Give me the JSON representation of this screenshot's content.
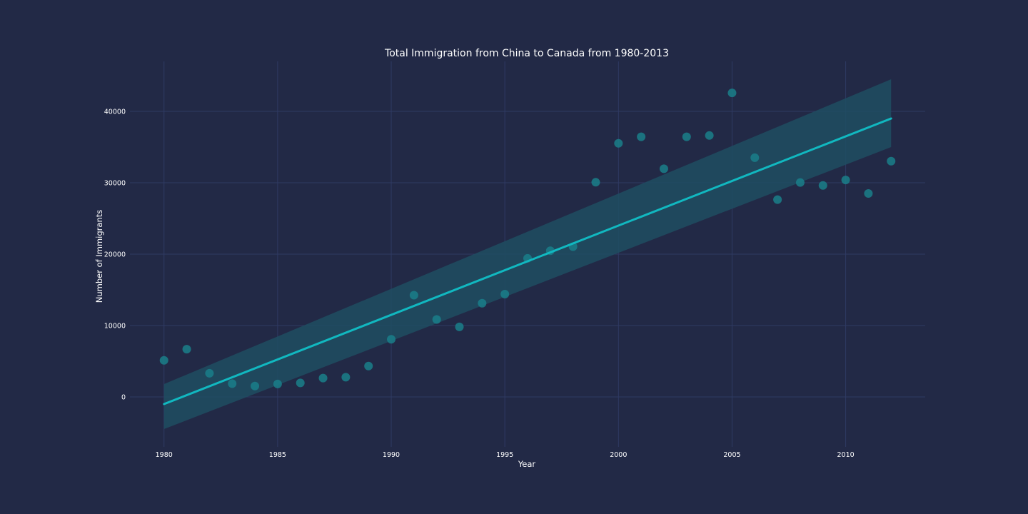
{
  "chart_data": {
    "type": "scatter",
    "title": "Total Immigration from China to Canada from 1980-2013",
    "xlabel": "Year",
    "ylabel": "Number of Immigrants",
    "xlim": [
      1978.5,
      2013.5
    ],
    "ylim": [
      -7000,
      47000
    ],
    "xticks": [
      1980,
      1985,
      1990,
      1995,
      2000,
      2005,
      2010
    ],
    "yticks": [
      0,
      10000,
      20000,
      30000,
      40000
    ],
    "grid": true,
    "series": [
      {
        "x": [
          1980,
          1981,
          1982,
          1983,
          1984,
          1985,
          1986,
          1987,
          1988,
          1989,
          1990,
          1991,
          1992,
          1993,
          1994,
          1995,
          1996,
          1997,
          1998,
          1999,
          2000,
          2001,
          2002,
          2003,
          2004,
          2005,
          2006,
          2007,
          2008,
          2009,
          2010,
          2011,
          2012
        ],
        "y": [
          5123,
          6682,
          3308,
          1863,
          1527,
          1816,
          1960,
          2643,
          2758,
          4323,
          8076,
          14255,
          10846,
          9817,
          13128,
          14398,
          19415,
          20475,
          21049,
          30069,
          35529,
          36434,
          31961,
          36439,
          36619,
          42584,
          33518,
          27642,
          30037,
          29622,
          30391,
          28502,
          33024
        ]
      }
    ],
    "trend": {
      "x": [
        1980,
        2012
      ],
      "y": [
        -1000,
        39000
      ],
      "ci_lower": [
        -4500,
        35000
      ],
      "ci_upper": [
        1800,
        44500
      ]
    },
    "colors": {
      "background": "#222946",
      "points": "#1a7f8a",
      "line": "#11b8c0",
      "band": "#1f4d61",
      "grid": "#2f3a63",
      "text": "#ffffff"
    }
  }
}
